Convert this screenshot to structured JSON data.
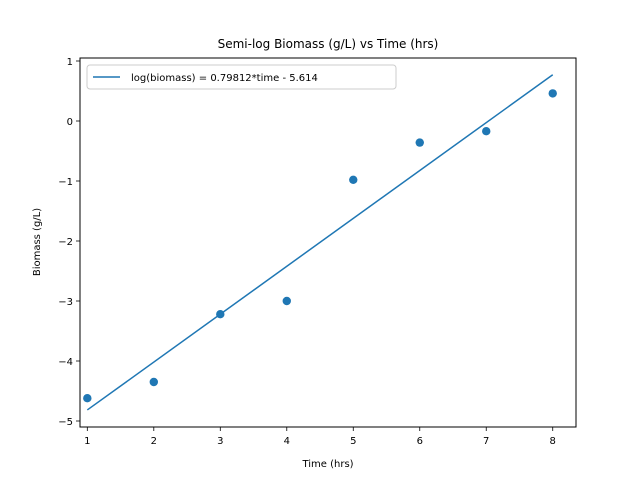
{
  "chart_data": {
    "type": "scatter",
    "title": "Semi-log Biomass (g/L) vs Time (hrs)",
    "xlabel": "Time (hrs)",
    "ylabel": "Biomass (g/L)",
    "xlim": [
      0.89,
      8.35
    ],
    "ylim": [
      -5.1,
      1.05
    ],
    "xticks": [
      1,
      2,
      3,
      4,
      5,
      6,
      7,
      8
    ],
    "yticks": [
      1,
      0,
      -1,
      -2,
      -3,
      -4,
      -5
    ],
    "ytick_labels": [
      "1",
      "0",
      "−1",
      "−2",
      "−3",
      "−4",
      "−5"
    ],
    "grid": false,
    "legend": {
      "location": "top-left",
      "entries": [
        "log(biomass) = 0.79812*time - 5.614"
      ]
    },
    "series": [
      {
        "kind": "scatter",
        "x": [
          1,
          2,
          3,
          4,
          5,
          6,
          7,
          8
        ],
        "y": [
          -4.62,
          -4.35,
          -3.22,
          -3.0,
          -0.98,
          -0.36,
          -0.17,
          0.46
        ],
        "color": "#1f77b4"
      },
      {
        "kind": "line",
        "name": "log(biomass) = 0.79812*time - 5.614",
        "slope": 0.79812,
        "intercept": -5.614,
        "x": [
          1,
          8
        ],
        "color": "#1f77b4"
      }
    ]
  }
}
